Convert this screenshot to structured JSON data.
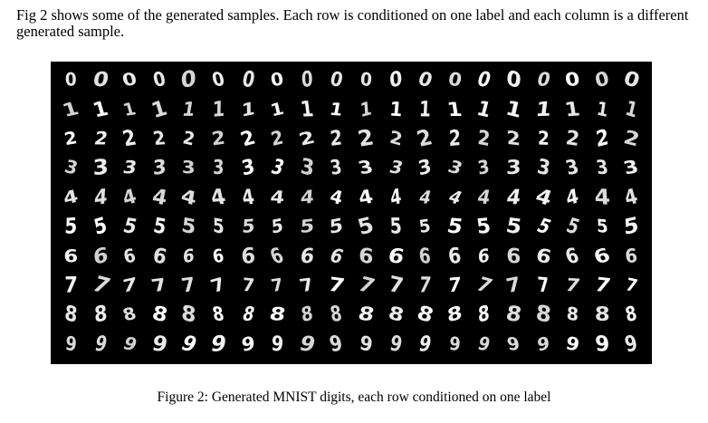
{
  "intro_text": "Fig 2 shows some of the generated samples. Each row is conditioned on one label and each column is a different generated sample.",
  "figure": {
    "rows": [
      {
        "label": "0",
        "samples": [
          "0",
          "0",
          "0",
          "0",
          "0",
          "0",
          "0",
          "0",
          "0",
          "0",
          "0",
          "0",
          "0",
          "0",
          "0",
          "0",
          "0",
          "0",
          "0",
          "0"
        ]
      },
      {
        "label": "1",
        "samples": [
          "1",
          "1",
          "1",
          "1",
          "1",
          "1",
          "1",
          "1",
          "1",
          "1",
          "1",
          "1",
          "1",
          "1",
          "1",
          "1",
          "1",
          "1",
          "1",
          "1"
        ]
      },
      {
        "label": "2",
        "samples": [
          "2",
          "2",
          "2",
          "2",
          "2",
          "2",
          "2",
          "2",
          "2",
          "2",
          "2",
          "2",
          "2",
          "2",
          "2",
          "2",
          "2",
          "2",
          "2",
          "2"
        ]
      },
      {
        "label": "3",
        "samples": [
          "3",
          "3",
          "3",
          "3",
          "3",
          "3",
          "3",
          "3",
          "3",
          "3",
          "3",
          "3",
          "3",
          "3",
          "3",
          "3",
          "3",
          "3",
          "3",
          "3"
        ]
      },
      {
        "label": "4",
        "samples": [
          "4",
          "4",
          "4",
          "4",
          "4",
          "4",
          "4",
          "4",
          "4",
          "4",
          "4",
          "4",
          "4",
          "4",
          "4",
          "4",
          "4",
          "4",
          "4",
          "4"
        ]
      },
      {
        "label": "5",
        "samples": [
          "5",
          "5",
          "5",
          "5",
          "5",
          "5",
          "5",
          "5",
          "5",
          "5",
          "5",
          "5",
          "5",
          "5",
          "5",
          "5",
          "5",
          "5",
          "5",
          "5"
        ]
      },
      {
        "label": "6",
        "samples": [
          "6",
          "6",
          "6",
          "6",
          "6",
          "6",
          "6",
          "6",
          "6",
          "6",
          "6",
          "6",
          "6",
          "6",
          "6",
          "6",
          "6",
          "6",
          "6",
          "6"
        ]
      },
      {
        "label": "7",
        "samples": [
          "7",
          "7",
          "7",
          "7",
          "7",
          "7",
          "7",
          "7",
          "7",
          "7",
          "7",
          "7",
          "7",
          "7",
          "7",
          "7",
          "7",
          "7",
          "7",
          "7"
        ]
      },
      {
        "label": "8",
        "samples": [
          "8",
          "8",
          "8",
          "8",
          "8",
          "8",
          "8",
          "8",
          "8",
          "8",
          "8",
          "8",
          "8",
          "8",
          "8",
          "8",
          "8",
          "8",
          "8",
          "8"
        ]
      },
      {
        "label": "9",
        "samples": [
          "9",
          "9",
          "9",
          "9",
          "9",
          "9",
          "9",
          "9",
          "9",
          "9",
          "9",
          "9",
          "9",
          "9",
          "9",
          "9",
          "9",
          "9",
          "9",
          "9"
        ]
      }
    ]
  },
  "caption": "Figure 2: Generated MNIST digits, each row conditioned on one label"
}
